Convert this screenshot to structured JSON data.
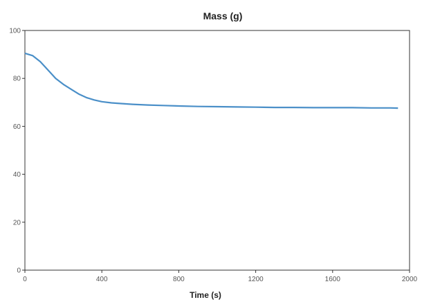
{
  "chart_data": {
    "type": "line",
    "title": "Mass (g)",
    "xlabel": "Time (s)",
    "ylabel": "",
    "xlim": [
      0,
      2000
    ],
    "ylim": [
      0,
      100
    ],
    "xticks": [
      0,
      400,
      800,
      1200,
      1600,
      2000
    ],
    "yticks": [
      0,
      20,
      40,
      60,
      80,
      100
    ],
    "grid": false,
    "legend": "none",
    "series_color": "#4a8fc8",
    "x": [
      0,
      40,
      80,
      120,
      160,
      200,
      240,
      280,
      320,
      360,
      400,
      450,
      500,
      560,
      640,
      720,
      800,
      900,
      1000,
      1100,
      1200,
      1300,
      1400,
      1500,
      1600,
      1700,
      1800,
      1900,
      1940
    ],
    "y": [
      90.5,
      89.5,
      87,
      83.5,
      80,
      77.5,
      75.5,
      73.5,
      72,
      71,
      70.3,
      69.8,
      69.5,
      69.2,
      68.9,
      68.7,
      68.5,
      68.3,
      68.2,
      68.1,
      68.0,
      67.9,
      67.9,
      67.8,
      67.8,
      67.8,
      67.7,
      67.7,
      67.6
    ]
  }
}
